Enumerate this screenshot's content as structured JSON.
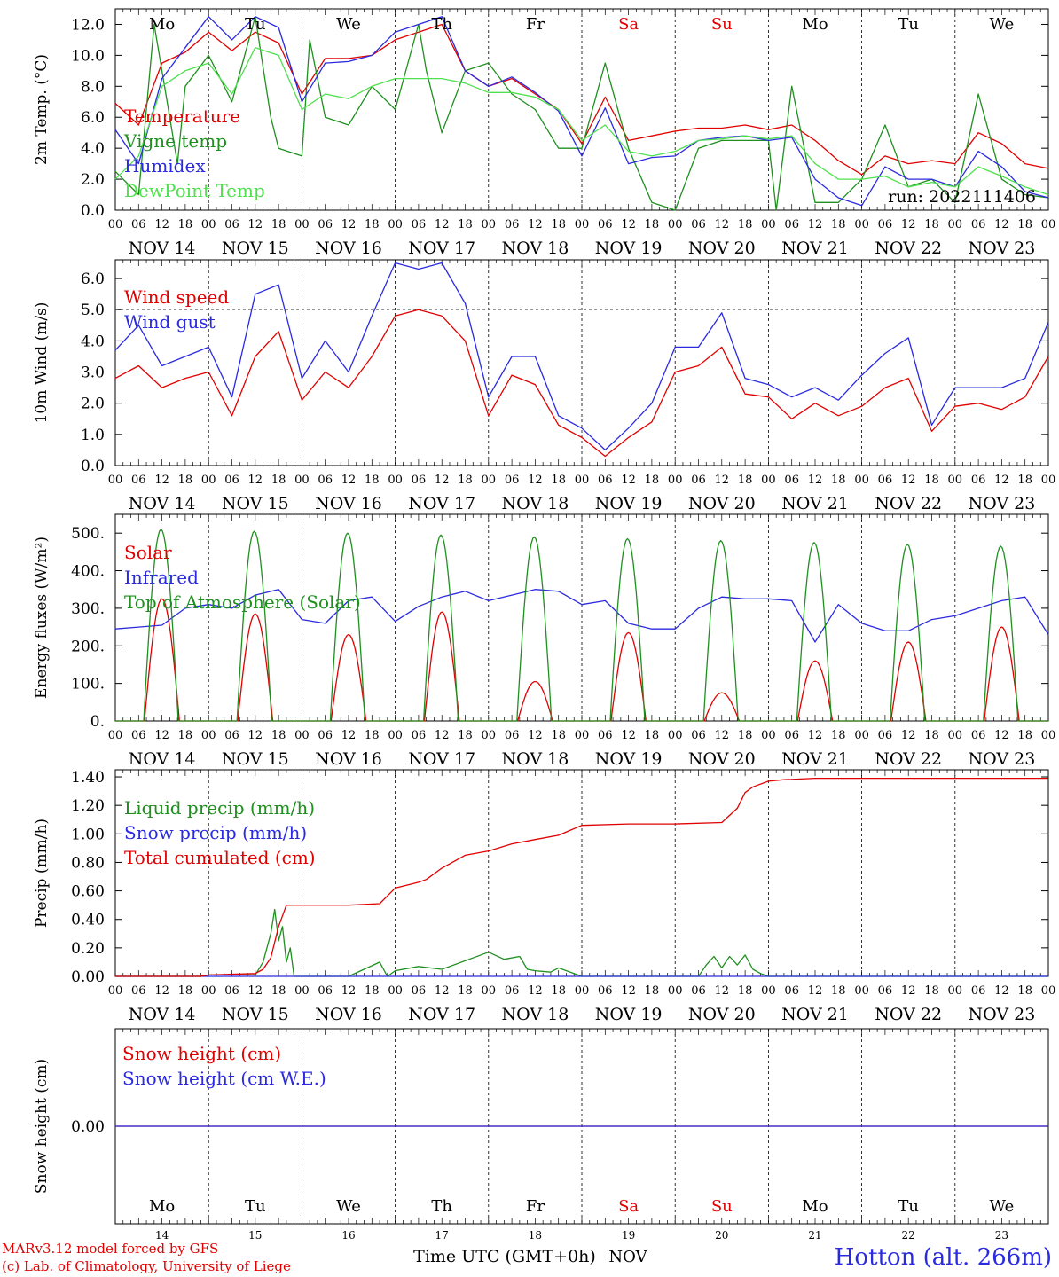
{
  "run_label": "run: 2022111406",
  "station_label": "Hotton (alt. 266m)",
  "credit_lines": [
    "MARv3.12 model forced by GFS",
    "(c) Lab. of Climatology, University of Liege"
  ],
  "xaxis_title": "Time UTC (GMT+0h)",
  "month_label": "NOV",
  "hour_ticks": [
    "00",
    "06",
    "12",
    "18"
  ],
  "dates": [
    "NOV 14",
    "NOV 15",
    "NOV 16",
    "NOV 17",
    "NOV 18",
    "NOV 19",
    "NOV 20",
    "NOV 21",
    "NOV 22",
    "NOV 23"
  ],
  "day_numbers": [
    "14",
    "15",
    "16",
    "17",
    "18",
    "19",
    "20",
    "21",
    "22",
    "23"
  ],
  "weekdays": [
    {
      "label": "Mo",
      "color": "#000000"
    },
    {
      "label": "Tu",
      "color": "#000000"
    },
    {
      "label": "We",
      "color": "#000000"
    },
    {
      "label": "Th",
      "color": "#000000"
    },
    {
      "label": "Fr",
      "color": "#000000"
    },
    {
      "label": "Sa",
      "color": "#e00000"
    },
    {
      "label": "Su",
      "color": "#e00000"
    },
    {
      "label": "Mo",
      "color": "#000000"
    },
    {
      "label": "Tu",
      "color": "#000000"
    },
    {
      "label": "We",
      "color": "#000000"
    }
  ],
  "chart_data": [
    {
      "id": "temp",
      "type": "line",
      "ylabel": "2m Temp. (°C)",
      "ylim": [
        0,
        13
      ],
      "yticks": [
        {
          "v": 0,
          "t": "0.0"
        },
        {
          "v": 2,
          "t": "2.0"
        },
        {
          "v": 4,
          "t": "4.0"
        },
        {
          "v": 6,
          "t": "6.0"
        },
        {
          "v": 8,
          "t": "8.0"
        },
        {
          "v": 10,
          "t": "10.0"
        },
        {
          "v": 12,
          "t": "12.0"
        }
      ],
      "legend_position": "left",
      "series": [
        {
          "name": "Temperature",
          "color": "#e00000",
          "t": [
            0,
            6,
            12,
            18,
            24,
            30,
            36,
            42,
            48,
            54,
            60,
            66,
            72,
            78,
            84,
            90,
            96,
            102,
            108,
            114,
            120,
            126,
            132,
            138,
            144,
            150,
            156,
            162,
            168,
            174,
            180,
            186,
            192,
            198,
            204,
            210,
            216,
            222,
            228,
            234,
            240
          ],
          "values": [
            6.9,
            5.5,
            9.5,
            10.2,
            11.5,
            10.3,
            11.5,
            10.8,
            7.5,
            9.8,
            9.8,
            10.0,
            11.0,
            11.5,
            12.0,
            9.0,
            8.0,
            8.5,
            7.5,
            6.5,
            4.3,
            7.3,
            4.5,
            4.8,
            5.1,
            5.3,
            5.3,
            5.5,
            5.2,
            5.5,
            4.5,
            3.2,
            2.3,
            3.5,
            3.0,
            3.2,
            3.0,
            5.0,
            4.3,
            3.0,
            2.7
          ]
        },
        {
          "name": "Vigne temp",
          "color": "#1f8f1f",
          "t": [
            0,
            6,
            10,
            12,
            16,
            18,
            24,
            30,
            36,
            40,
            42,
            48,
            50,
            54,
            60,
            66,
            72,
            78,
            80,
            84,
            90,
            96,
            102,
            108,
            114,
            120,
            126,
            132,
            138,
            144,
            150,
            156,
            162,
            168,
            170,
            174,
            180,
            186,
            192,
            198,
            204,
            210,
            216,
            222,
            228,
            234,
            240
          ],
          "values": [
            2.5,
            1.0,
            12.0,
            9.0,
            3.0,
            8.0,
            10.0,
            7.0,
            12.5,
            6.0,
            4.0,
            3.5,
            11.0,
            6.0,
            5.5,
            8.0,
            6.5,
            12.0,
            9.0,
            5.0,
            9.0,
            9.5,
            7.5,
            6.5,
            4.0,
            4.0,
            9.5,
            4.0,
            0.5,
            0.0,
            4.0,
            4.5,
            4.5,
            4.5,
            0.0,
            8.0,
            0.5,
            0.5,
            2.0,
            5.5,
            1.5,
            2.0,
            0.5,
            7.5,
            2.0,
            1.0,
            0.8
          ]
        },
        {
          "name": "Humidex",
          "color": "#2a2ae0",
          "t": [
            0,
            6,
            12,
            18,
            24,
            30,
            36,
            42,
            48,
            54,
            60,
            66,
            72,
            78,
            84,
            90,
            96,
            102,
            108,
            114,
            120,
            126,
            132,
            138,
            144,
            150,
            156,
            162,
            168,
            174,
            180,
            186,
            192,
            198,
            204,
            210,
            216,
            222,
            228,
            234,
            240
          ],
          "values": [
            5.2,
            3.0,
            8.5,
            10.5,
            12.5,
            11.0,
            12.5,
            11.8,
            7.0,
            9.5,
            9.6,
            10.0,
            11.5,
            12.0,
            12.5,
            9.0,
            8.0,
            8.6,
            7.6,
            6.4,
            3.5,
            6.6,
            3.0,
            3.4,
            3.5,
            4.5,
            4.7,
            4.8,
            4.5,
            4.7,
            2.0,
            0.8,
            0.3,
            2.8,
            2.0,
            2.0,
            1.5,
            3.8,
            2.8,
            1.2,
            0.8
          ]
        },
        {
          "name": "DewPoint Temp",
          "color": "#4fe04f",
          "t": [
            0,
            6,
            12,
            18,
            24,
            30,
            36,
            42,
            48,
            54,
            60,
            66,
            72,
            78,
            84,
            90,
            96,
            102,
            108,
            114,
            120,
            126,
            132,
            138,
            144,
            150,
            156,
            162,
            168,
            174,
            180,
            186,
            192,
            198,
            204,
            210,
            216,
            222,
            228,
            234,
            240
          ],
          "values": [
            2.0,
            3.5,
            8.0,
            9.0,
            9.5,
            7.5,
            10.5,
            10.0,
            6.5,
            7.5,
            7.2,
            8.0,
            8.5,
            8.5,
            8.5,
            8.2,
            7.6,
            7.6,
            7.3,
            6.5,
            4.5,
            5.5,
            3.8,
            3.5,
            3.8,
            4.5,
            4.6,
            4.8,
            4.6,
            4.8,
            3.0,
            2.0,
            2.0,
            2.2,
            1.5,
            1.8,
            1.5,
            2.8,
            2.2,
            1.5,
            1.0
          ]
        }
      ]
    },
    {
      "id": "wind",
      "type": "line",
      "ylabel": "10m Wind (m/s)",
      "ylim": [
        0,
        6.6
      ],
      "ref_line": 5.0,
      "yticks": [
        {
          "v": 0,
          "t": "0.0"
        },
        {
          "v": 1,
          "t": "1.0"
        },
        {
          "v": 2,
          "t": "2.0"
        },
        {
          "v": 3,
          "t": "3.0"
        },
        {
          "v": 4,
          "t": "4.0"
        },
        {
          "v": 5,
          "t": "5.0"
        },
        {
          "v": 6,
          "t": "6.0"
        }
      ],
      "legend_position": "top-left",
      "series": [
        {
          "name": "Wind speed",
          "color": "#e00000",
          "t": [
            0,
            6,
            12,
            18,
            24,
            30,
            36,
            42,
            48,
            54,
            60,
            66,
            72,
            78,
            84,
            90,
            96,
            102,
            108,
            114,
            120,
            126,
            132,
            138,
            144,
            150,
            156,
            162,
            168,
            174,
            180,
            186,
            192,
            198,
            204,
            210,
            216,
            222,
            228,
            234,
            240
          ],
          "values": [
            2.8,
            3.2,
            2.5,
            2.8,
            3.0,
            1.6,
            3.5,
            4.3,
            2.1,
            3.0,
            2.5,
            3.5,
            4.8,
            5.0,
            4.8,
            4.0,
            1.6,
            2.9,
            2.6,
            1.3,
            0.9,
            0.3,
            0.9,
            1.4,
            3.0,
            3.2,
            3.8,
            2.3,
            2.2,
            1.5,
            2.0,
            1.6,
            1.9,
            2.5,
            2.8,
            1.1,
            1.9,
            2.0,
            1.8,
            2.2,
            3.5
          ]
        },
        {
          "name": "Wind gust",
          "color": "#2a2ae0",
          "t": [
            0,
            6,
            12,
            18,
            24,
            30,
            36,
            42,
            48,
            54,
            60,
            66,
            72,
            78,
            84,
            90,
            96,
            102,
            108,
            114,
            120,
            126,
            132,
            138,
            144,
            150,
            156,
            162,
            168,
            174,
            180,
            186,
            192,
            198,
            204,
            210,
            216,
            222,
            228,
            234,
            240
          ],
          "values": [
            3.7,
            4.5,
            3.2,
            3.5,
            3.8,
            2.2,
            5.5,
            5.8,
            2.8,
            4.0,
            3.0,
            4.8,
            6.5,
            6.3,
            6.5,
            5.2,
            2.2,
            3.5,
            3.5,
            1.6,
            1.2,
            0.5,
            1.2,
            2.0,
            3.8,
            3.8,
            4.9,
            2.8,
            2.6,
            2.2,
            2.5,
            2.1,
            2.9,
            3.6,
            4.1,
            1.3,
            2.5,
            2.5,
            2.5,
            2.8,
            4.6
          ]
        }
      ]
    },
    {
      "id": "energy",
      "type": "line",
      "ylabel": "Energy fluxes (W/m²)",
      "ylim": [
        0,
        550
      ],
      "yticks": [
        {
          "v": 0,
          "t": "0."
        },
        {
          "v": 100,
          "t": "100."
        },
        {
          "v": 200,
          "t": "200."
        },
        {
          "v": 300,
          "t": "300."
        },
        {
          "v": 400,
          "t": "400."
        },
        {
          "v": 500,
          "t": "500."
        }
      ],
      "legend_position": "left",
      "series": [
        {
          "name": "Solar",
          "color": "#e00000",
          "kind": "daily_peak",
          "start": 7.5,
          "end": 16.5,
          "peaks": [
            325,
            285,
            230,
            290,
            105,
            235,
            75,
            160,
            210,
            250
          ]
        },
        {
          "name": "Infrared",
          "color": "#2a2ae0",
          "t": [
            0,
            6,
            12,
            18,
            24,
            30,
            36,
            42,
            48,
            54,
            60,
            66,
            72,
            78,
            84,
            90,
            96,
            102,
            108,
            114,
            120,
            126,
            132,
            138,
            144,
            150,
            156,
            162,
            168,
            174,
            180,
            186,
            192,
            198,
            204,
            210,
            216,
            222,
            228,
            234,
            240
          ],
          "values": [
            245,
            250,
            255,
            300,
            310,
            300,
            335,
            350,
            270,
            260,
            320,
            330,
            265,
            305,
            330,
            345,
            320,
            335,
            350,
            345,
            310,
            320,
            260,
            245,
            245,
            300,
            330,
            325,
            325,
            320,
            210,
            310,
            260,
            240,
            240,
            270,
            280,
            300,
            320,
            330,
            230
          ]
        },
        {
          "name": "Top of Atmosphere (Solar)",
          "color": "#1f8f1f",
          "kind": "daily_peak",
          "start": 7.3,
          "end": 16.2,
          "peaks": [
            510,
            505,
            500,
            495,
            490,
            485,
            480,
            475,
            470,
            465
          ]
        }
      ]
    },
    {
      "id": "precip",
      "type": "line",
      "ylabel": "Precip (mm/h)",
      "ylim": [
        0,
        1.45
      ],
      "yticks": [
        {
          "v": 0,
          "t": "0.00"
        },
        {
          "v": 0.2,
          "t": "0.20"
        },
        {
          "v": 0.4,
          "t": "0.40"
        },
        {
          "v": 0.6,
          "t": "0.60"
        },
        {
          "v": 0.8,
          "t": "0.80"
        },
        {
          "v": 1.0,
          "t": "1.00"
        },
        {
          "v": 1.2,
          "t": "1.20"
        },
        {
          "v": 1.4,
          "t": "1.40"
        }
      ],
      "legend_position": "top-left",
      "series": [
        {
          "name": "Liquid precip (mm/h)",
          "color": "#1f8f1f",
          "t": [
            0,
            22,
            24,
            36,
            38,
            40,
            41,
            42,
            43,
            44,
            45,
            46,
            48,
            60,
            68,
            70,
            72,
            78,
            84,
            96,
            100,
            104,
            106,
            108,
            112,
            114,
            120,
            126,
            132,
            150,
            152,
            154,
            156,
            158,
            160,
            162,
            164,
            166,
            168,
            240
          ],
          "values": [
            0,
            0,
            0.01,
            0.01,
            0.1,
            0.3,
            0.47,
            0.25,
            0.35,
            0.1,
            0.2,
            0.0,
            0.0,
            0.0,
            0.1,
            0.0,
            0.04,
            0.07,
            0.05,
            0.17,
            0.12,
            0.14,
            0.05,
            0.04,
            0.03,
            0.06,
            0.0,
            0.0,
            0.0,
            0.0,
            0.08,
            0.14,
            0.06,
            0.14,
            0.08,
            0.15,
            0.05,
            0.02,
            0.0,
            0.0
          ]
        },
        {
          "name": "Snow precip (mm/h)",
          "color": "#2a2ae0",
          "t": [
            0,
            240
          ],
          "values": [
            0,
            0
          ]
        },
        {
          "name": "Total cumulated (cm)",
          "color": "#e00000",
          "t": [
            0,
            22,
            24,
            36,
            38,
            40,
            42,
            44,
            46,
            48,
            60,
            68,
            72,
            78,
            80,
            84,
            90,
            96,
            102,
            108,
            114,
            120,
            132,
            144,
            156,
            160,
            162,
            164,
            168,
            172,
            180,
            240
          ],
          "values": [
            0,
            0,
            0.01,
            0.02,
            0.05,
            0.13,
            0.35,
            0.5,
            0.5,
            0.5,
            0.5,
            0.51,
            0.62,
            0.66,
            0.68,
            0.76,
            0.85,
            0.88,
            0.93,
            0.96,
            0.99,
            1.06,
            1.07,
            1.07,
            1.08,
            1.18,
            1.29,
            1.33,
            1.37,
            1.38,
            1.39,
            1.39
          ]
        }
      ]
    },
    {
      "id": "snow",
      "type": "line",
      "ylabel": "Snow height (cm)",
      "ylim": [
        -1,
        1
      ],
      "yticks": [
        {
          "v": 0,
          "t": "0.00"
        }
      ],
      "legend_position": "top-left",
      "series": [
        {
          "name": "Snow height (cm)",
          "color": "#e00000",
          "t": [
            0,
            240
          ],
          "values": [
            0,
            0
          ]
        },
        {
          "name": "Snow height (cm W.E.)",
          "color": "#2a2ae0",
          "t": [
            0,
            240
          ],
          "values": [
            0,
            0
          ]
        }
      ]
    }
  ]
}
